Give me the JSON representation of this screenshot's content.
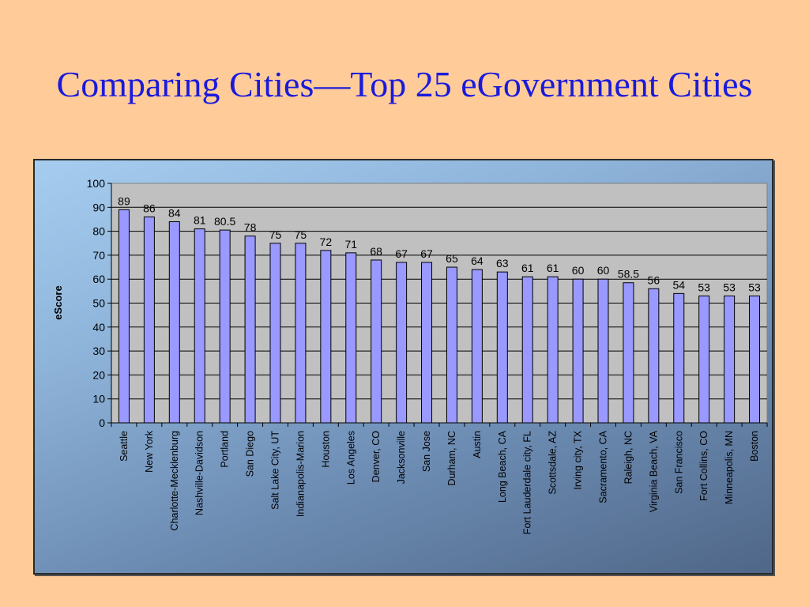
{
  "slide": {
    "title": "Comparing Cities—Top 25 eGovernment Cities"
  },
  "colors": {
    "background": "#ffcc99",
    "title": "#1a1adb",
    "bar_fill": "#9999ff",
    "plot_area": "#c0c0c0"
  },
  "chart_data": {
    "type": "bar",
    "title": "",
    "xlabel": "",
    "ylabel": "eScore",
    "ylim": [
      0,
      100
    ],
    "yticks": [
      0,
      10,
      20,
      30,
      40,
      50,
      60,
      70,
      80,
      90,
      100
    ],
    "grid": true,
    "legend": "none",
    "categories": [
      "Seattle",
      "New York",
      "Charlotte-Mecklenburg",
      "Nashville-Davidson",
      "Portland",
      "San Diego",
      "Salt Lake City, UT",
      "Indianapolis-Marion",
      "Houston",
      "Los Angeles",
      "Denver, CO",
      "Jacksonville",
      "San Jose",
      "Durham, NC",
      "Austin",
      "Long Beach, CA",
      "Fort Lauderdale city, FL",
      "Scottsdale, AZ",
      "Irving city, TX",
      "Sacramento, CA",
      "Raleigh, NC",
      "Virginia Beach, VA",
      "San Francisco",
      "Fort Collins, CO",
      "Minneapolis, MN",
      "Boston"
    ],
    "values": [
      89,
      86,
      84,
      81,
      80.5,
      78,
      75,
      75,
      72,
      71,
      68,
      67,
      67,
      65,
      64,
      63,
      61,
      61,
      60,
      60,
      58.5,
      56,
      54,
      53,
      53,
      53
    ]
  }
}
